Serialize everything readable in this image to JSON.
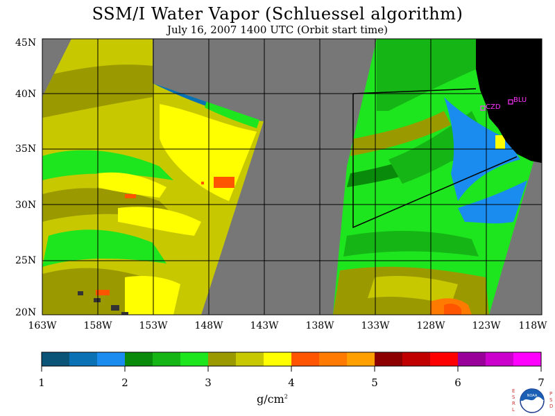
{
  "header": {
    "title": "SSM/I Water Vapor (Schluessel algorithm)",
    "subtitle": "July 16, 2007  1400 UTC  (Orbit start time)"
  },
  "map": {
    "lat_labels": [
      "45N",
      "40N",
      "35N",
      "30N",
      "25N",
      "20N"
    ],
    "lon_labels": [
      "163W",
      "158W",
      "153W",
      "148W",
      "143W",
      "138W",
      "133W",
      "128W",
      "123W",
      "118W"
    ],
    "lon_range": [
      -163,
      -118
    ],
    "lat_range": [
      20,
      45
    ],
    "station_labels": [
      "CZD",
      "BLU"
    ],
    "no_data_color": "#777777",
    "land_color": "#000000"
  },
  "colorbar": {
    "tick_labels": [
      "1",
      "2",
      "3",
      "4",
      "5",
      "6",
      "7"
    ],
    "units": "g/cm",
    "units_superscript": "2",
    "colors": [
      "#0b5477",
      "#0b71b5",
      "#1a8cf0",
      "#0a8a0a",
      "#16b516",
      "#1ee61e",
      "#9a9a00",
      "#c8c800",
      "#ffff00",
      "#ff5500",
      "#ff7a00",
      "#ff9f00",
      "#8c0000",
      "#c00000",
      "#ff0000",
      "#990099",
      "#cc00cc",
      "#ff00ff"
    ]
  },
  "logo": {
    "left_letters": "ESRL",
    "right_letters": "PSD",
    "center_text": "NOAA"
  }
}
